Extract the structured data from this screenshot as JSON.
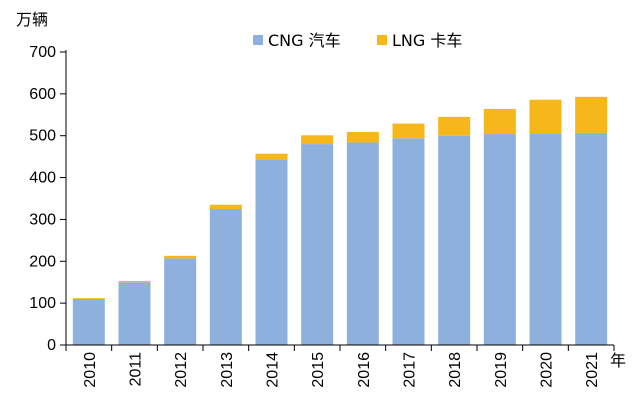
{
  "chart_data": {
    "type": "bar",
    "stacked": true,
    "ylabel": "万辆",
    "xlabel": "年",
    "ylim": [
      0,
      700
    ],
    "yticks": [
      0,
      100,
      200,
      300,
      400,
      500,
      600,
      700
    ],
    "grid": false,
    "legend_position": "top-right",
    "categories": [
      "2010",
      "2011",
      "2012",
      "2013",
      "2014",
      "2015",
      "2016",
      "2017",
      "2018",
      "2019",
      "2020",
      "2021"
    ],
    "series": [
      {
        "name": "CNG 汽车",
        "color": "#8EB0DC",
        "values": [
          110,
          150,
          207,
          325,
          442,
          480,
          484,
          494,
          500,
          504,
          506,
          507
        ]
      },
      {
        "name": "LNG 卡车",
        "color": "#F5B719",
        "values": [
          2,
          3,
          6,
          10,
          15,
          21,
          25,
          35,
          45,
          60,
          80,
          86
        ]
      }
    ]
  }
}
